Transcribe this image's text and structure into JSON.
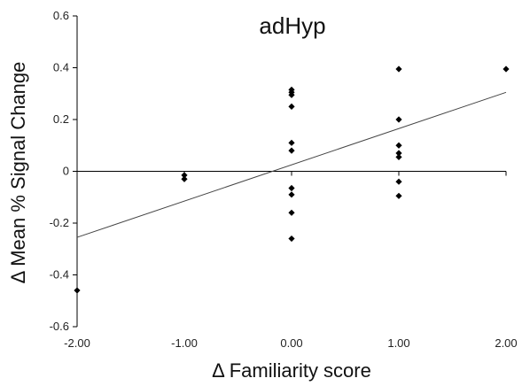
{
  "chart_data": {
    "type": "scatter",
    "title": "adHyp",
    "xlabel": "Δ Familiarity score",
    "ylabel": "Δ Mean % Signal Change",
    "xlim": [
      -2,
      2
    ],
    "ylim": [
      -0.6,
      0.6
    ],
    "x_ticks": [
      "-2.00",
      "-1.00",
      "0.00",
      "1.00",
      "2.00"
    ],
    "y_ticks": [
      "0.6",
      "0.4",
      "0.2",
      "0",
      "-0.2",
      "-0.4",
      "-0.6"
    ],
    "grid": false,
    "series": [
      {
        "points": [
          {
            "x": -2,
            "y": -0.46
          },
          {
            "x": -1,
            "y": -0.015
          },
          {
            "x": -1,
            "y": -0.03
          },
          {
            "x": 0,
            "y": 0.315
          },
          {
            "x": 0,
            "y": 0.305
          },
          {
            "x": 0,
            "y": 0.295
          },
          {
            "x": 0,
            "y": 0.25
          },
          {
            "x": 0,
            "y": 0.11
          },
          {
            "x": 0,
            "y": 0.08
          },
          {
            "x": 0,
            "y": -0.065
          },
          {
            "x": 0,
            "y": -0.09
          },
          {
            "x": 0,
            "y": -0.16
          },
          {
            "x": 0,
            "y": -0.26
          },
          {
            "x": 1,
            "y": 0.395
          },
          {
            "x": 1,
            "y": 0.2
          },
          {
            "x": 1,
            "y": 0.1
          },
          {
            "x": 1,
            "y": 0.07
          },
          {
            "x": 1,
            "y": 0.055
          },
          {
            "x": 1,
            "y": -0.04
          },
          {
            "x": 1,
            "y": -0.095
          },
          {
            "x": 2,
            "y": 0.395
          }
        ]
      }
    ],
    "trendline": {
      "x": [
        -2,
        2
      ],
      "y": [
        -0.255,
        0.305
      ]
    },
    "colors": {
      "points": "#000000",
      "line": "#444444",
      "axis": "#000000"
    }
  }
}
